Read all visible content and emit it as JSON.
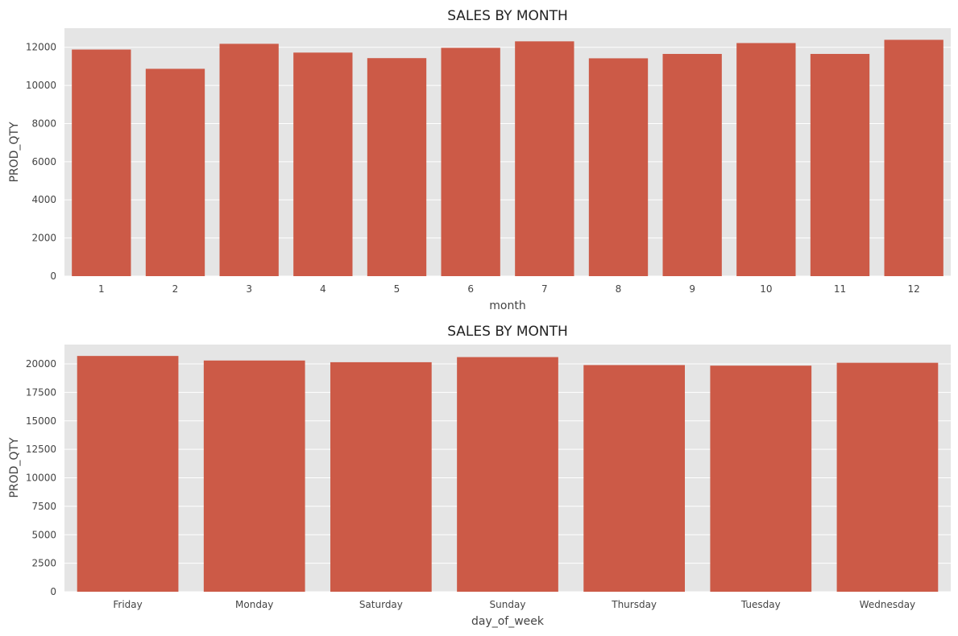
{
  "chart_data": [
    {
      "type": "bar",
      "title": "SALES BY MONTH",
      "xlabel": "month",
      "ylabel": "PROD_QTY",
      "categories": [
        "1",
        "2",
        "3",
        "4",
        "5",
        "6",
        "7",
        "8",
        "9",
        "10",
        "11",
        "12"
      ],
      "values": [
        11880,
        10870,
        12180,
        11720,
        11430,
        11970,
        12310,
        11420,
        11650,
        12220,
        11650,
        12390
      ],
      "ylim": [
        0,
        13000
      ],
      "yticks": [
        0,
        2000,
        4000,
        6000,
        8000,
        10000,
        12000
      ],
      "grid": true,
      "bar_color": "#cc5a47",
      "background": "#e5e5e5"
    },
    {
      "type": "bar",
      "title": "SALES BY MONTH",
      "xlabel": "day_of_week",
      "ylabel": "PROD_QTY",
      "categories": [
        "Friday",
        "Monday",
        "Saturday",
        "Sunday",
        "Thursday",
        "Tuesday",
        "Wednesday"
      ],
      "values": [
        20700,
        20300,
        20150,
        20600,
        19900,
        19850,
        20100
      ],
      "ylim": [
        0,
        21700
      ],
      "yticks": [
        0,
        2500,
        5000,
        7500,
        10000,
        12500,
        15000,
        17500,
        20000
      ],
      "grid": true,
      "bar_color": "#cc5a47",
      "background": "#e5e5e5"
    }
  ]
}
